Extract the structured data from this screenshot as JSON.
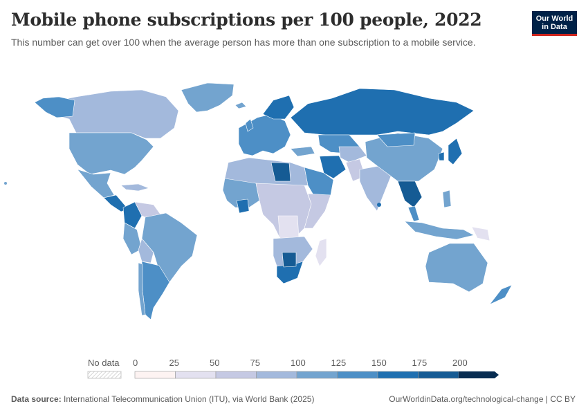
{
  "header": {
    "title": "Mobile phone subscriptions per 100 people, 2022",
    "subtitle": "This number can get over 100 when the average person has more than one subscription to a mobile service."
  },
  "logo": {
    "line1": "Our World",
    "line2": "in Data"
  },
  "legend": {
    "no_data_label": "No data",
    "ticks": [
      "0",
      "25",
      "50",
      "75",
      "100",
      "125",
      "150",
      "175",
      "200"
    ],
    "colors": [
      "#fdf3f2",
      "#e3e1f0",
      "#c5c9e3",
      "#a3b9dc",
      "#73a4cf",
      "#4d8fc6",
      "#1f6fb0",
      "#155b94",
      "#0d4678",
      "#072c51"
    ]
  },
  "footer": {
    "source_label": "Data source:",
    "source_text": "International Telecommunication Union (ITU), via World Bank (2025)",
    "right_text": "OurWorldinData.org/technological-change | CC BY"
  }
}
